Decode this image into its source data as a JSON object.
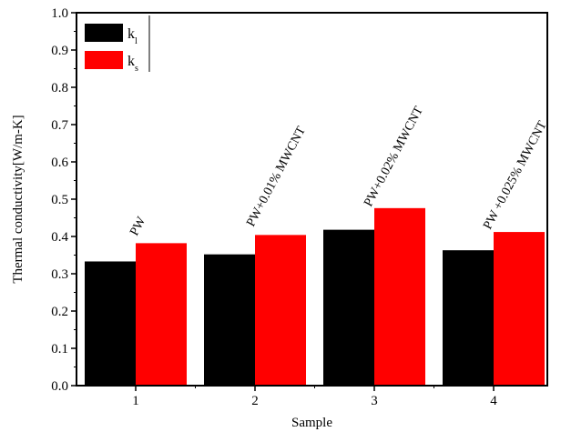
{
  "chart_data": {
    "type": "bar",
    "xlabel": "Sample",
    "ylabel": "Thermal conductivity[W/m-K]",
    "categories": [
      "1",
      "2",
      "3",
      "4"
    ],
    "ylim": [
      0.0,
      1.0
    ],
    "yticks": [
      "0.0",
      "0.1",
      "0.2",
      "0.3",
      "0.4",
      "0.5",
      "0.6",
      "0.7",
      "0.8",
      "0.9",
      "1.0"
    ],
    "series": [
      {
        "name": "k_l",
        "label_main": "k",
        "label_sub": "l",
        "color": "#000000",
        "values": [
          0.333,
          0.352,
          0.418,
          0.363
        ]
      },
      {
        "name": "k_s",
        "label_main": "k",
        "label_sub": "s",
        "color": "#ff0000",
        "values": [
          0.382,
          0.404,
          0.476,
          0.412
        ]
      }
    ],
    "annotations": [
      "PW",
      "PW+0.01% MWCNT",
      "PW+0.02% MWCNT",
      "PW +0.025% MWCNT"
    ],
    "legend_position": "top-left",
    "grid": false
  }
}
